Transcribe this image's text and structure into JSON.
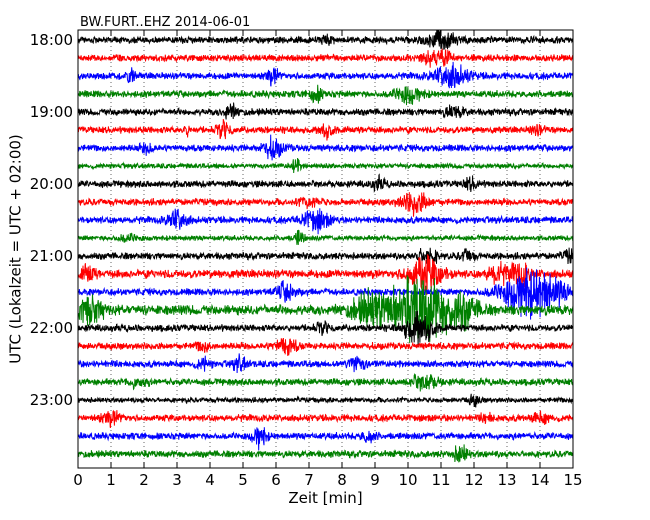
{
  "chart_data": {
    "type": "line",
    "title": "BW.FURT..EHZ 2014-06-01",
    "xlabel": "Zeit  [min]",
    "ylabel": "UTC (Lokalzeit = UTC + 02:00)",
    "xlim": [
      0,
      15
    ],
    "x_ticks": [
      "0",
      "1",
      "2",
      "3",
      "4",
      "5",
      "6",
      "7",
      "8",
      "9",
      "10",
      "11",
      "12",
      "13",
      "14",
      "15"
    ],
    "y_tick_labels": [
      "18:00",
      "19:00",
      "20:00",
      "21:00",
      "22:00",
      "23:00"
    ],
    "y_tick_traces": [
      0,
      4,
      8,
      12,
      16,
      20
    ],
    "trace_interval_min": 15,
    "grid": "vertical dotted",
    "series_colors": [
      "#000000",
      "#ff0000",
      "#0000ff",
      "#008000"
    ],
    "traces": [
      {
        "amp": 4,
        "events": [
          {
            "t": 11.0,
            "a": 12,
            "w": 0.4
          },
          {
            "t": 7.5,
            "a": 5,
            "w": 0.2
          }
        ]
      },
      {
        "amp": 4,
        "events": [
          {
            "t": 10.9,
            "a": 9,
            "w": 0.4
          }
        ]
      },
      {
        "amp": 4,
        "events": [
          {
            "t": 1.6,
            "a": 6,
            "w": 0.15
          },
          {
            "t": 5.9,
            "a": 8,
            "w": 0.2
          },
          {
            "t": 11.3,
            "a": 13,
            "w": 0.5
          }
        ]
      },
      {
        "amp": 4,
        "events": [
          {
            "t": 7.2,
            "a": 8,
            "w": 0.2
          },
          {
            "t": 10.0,
            "a": 9,
            "w": 0.4
          }
        ]
      },
      {
        "amp": 4,
        "events": [
          {
            "t": 4.6,
            "a": 8,
            "w": 0.2
          },
          {
            "t": 11.4,
            "a": 6,
            "w": 0.3
          }
        ]
      },
      {
        "amp": 4,
        "events": [
          {
            "t": 3.3,
            "a": 5,
            "w": 0.1
          },
          {
            "t": 4.4,
            "a": 9,
            "w": 0.2
          },
          {
            "t": 7.5,
            "a": 7,
            "w": 0.2
          },
          {
            "t": 13.9,
            "a": 5,
            "w": 0.2
          }
        ]
      },
      {
        "amp": 4,
        "events": [
          {
            "t": 2.1,
            "a": 5,
            "w": 0.2
          },
          {
            "t": 5.9,
            "a": 10,
            "w": 0.3
          }
        ]
      },
      {
        "amp": 3,
        "events": [
          {
            "t": 6.6,
            "a": 7,
            "w": 0.15
          }
        ]
      },
      {
        "amp": 4,
        "events": [
          {
            "t": 9.1,
            "a": 6,
            "w": 0.2
          },
          {
            "t": 11.9,
            "a": 6,
            "w": 0.2
          }
        ]
      },
      {
        "amp": 4,
        "events": [
          {
            "t": 10.2,
            "a": 12,
            "w": 0.4
          },
          {
            "t": 7.0,
            "a": 5,
            "w": 0.3
          }
        ]
      },
      {
        "amp": 4,
        "events": [
          {
            "t": 3.0,
            "a": 11,
            "w": 0.3
          },
          {
            "t": 7.2,
            "a": 11,
            "w": 0.4
          }
        ]
      },
      {
        "amp": 3,
        "events": [
          {
            "t": 6.7,
            "a": 8,
            "w": 0.15
          },
          {
            "t": 1.5,
            "a": 4,
            "w": 0.3
          }
        ]
      },
      {
        "amp": 4,
        "events": [
          {
            "t": 10.6,
            "a": 9,
            "w": 0.3
          },
          {
            "t": 11.8,
            "a": 7,
            "w": 0.2
          },
          {
            "t": 14.9,
            "a": 6,
            "w": 0.2
          }
        ]
      },
      {
        "amp": 5,
        "events": [
          {
            "t": 0.3,
            "a": 9,
            "w": 0.2
          },
          {
            "t": 10.5,
            "a": 20,
            "w": 0.5
          },
          {
            "t": 12.7,
            "a": 10,
            "w": 0.3
          },
          {
            "t": 13.4,
            "a": 12,
            "w": 0.3
          }
        ]
      },
      {
        "amp": 4,
        "events": [
          {
            "t": 6.3,
            "a": 10,
            "w": 0.3
          },
          {
            "t": 13.8,
            "a": 28,
            "w": 0.9
          }
        ]
      },
      {
        "amp": 6,
        "events": [
          {
            "t": 0.3,
            "a": 16,
            "w": 0.4
          },
          {
            "t": 8.8,
            "a": 14,
            "w": 0.5
          },
          {
            "t": 10.3,
            "a": 35,
            "w": 1.0
          },
          {
            "t": 11.6,
            "a": 14,
            "w": 0.5
          }
        ]
      },
      {
        "amp": 4,
        "events": [
          {
            "t": 7.4,
            "a": 6,
            "w": 0.2
          },
          {
            "t": 10.3,
            "a": 20,
            "w": 0.4
          }
        ]
      },
      {
        "amp": 4,
        "events": [
          {
            "t": 6.3,
            "a": 10,
            "w": 0.3
          },
          {
            "t": 3.8,
            "a": 5,
            "w": 0.2
          }
        ]
      },
      {
        "amp": 4,
        "events": [
          {
            "t": 3.8,
            "a": 6,
            "w": 0.2
          },
          {
            "t": 4.9,
            "a": 8,
            "w": 0.2
          },
          {
            "t": 8.4,
            "a": 8,
            "w": 0.3
          }
        ]
      },
      {
        "amp": 4,
        "events": [
          {
            "t": 1.8,
            "a": 5,
            "w": 0.3
          },
          {
            "t": 10.5,
            "a": 8,
            "w": 0.4
          }
        ]
      },
      {
        "amp": 3,
        "events": [
          {
            "t": 12.0,
            "a": 7,
            "w": 0.15
          }
        ]
      },
      {
        "amp": 4,
        "events": [
          {
            "t": 1.0,
            "a": 7,
            "w": 0.3
          },
          {
            "t": 12.4,
            "a": 4,
            "w": 0.2
          },
          {
            "t": 14.0,
            "a": 5,
            "w": 0.3
          }
        ]
      },
      {
        "amp": 4,
        "events": [
          {
            "t": 5.5,
            "a": 12,
            "w": 0.2
          },
          {
            "t": 8.8,
            "a": 7,
            "w": 0.2
          }
        ]
      },
      {
        "amp": 4,
        "events": [
          {
            "t": 11.6,
            "a": 10,
            "w": 0.2
          }
        ]
      }
    ]
  }
}
